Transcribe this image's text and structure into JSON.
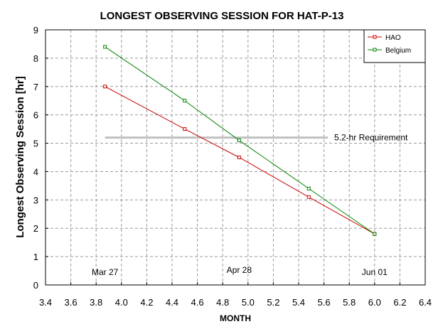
{
  "chart_data": {
    "type": "line",
    "title": "LONGEST OBSERVING SESSION FOR HAT-P-13",
    "xlabel": "MONTH",
    "ylabel": "Longest Observing Session [hr]",
    "xlim": [
      3.4,
      6.4
    ],
    "ylim": [
      0,
      9
    ],
    "xticks": [
      3.4,
      3.6,
      3.8,
      4.0,
      4.2,
      4.4,
      4.6,
      4.8,
      5.0,
      5.2,
      5.4,
      5.6,
      5.8,
      6.0,
      6.2,
      6.4
    ],
    "xtick_labels": [
      "3.4",
      "3.6",
      "3.8",
      "4.0",
      "4.2",
      "4.4",
      "4.6",
      "4.8",
      "5.0",
      "5.2",
      "5.4",
      "5.6",
      "5.8",
      "6.0",
      "6.2",
      "6.4"
    ],
    "yticks": [
      0,
      1,
      2,
      3,
      4,
      5,
      6,
      7,
      8,
      9
    ],
    "ytick_labels": [
      "0",
      "1",
      "2",
      "3",
      "4",
      "5",
      "6",
      "7",
      "8",
      "9"
    ],
    "grid": true,
    "legend_position": "top-right",
    "series": [
      {
        "name": "HAO",
        "color": "#cc0000",
        "x": [
          3.87,
          4.5,
          4.93,
          5.48,
          6.0
        ],
        "y": [
          7.0,
          5.5,
          4.5,
          3.1,
          1.8
        ]
      },
      {
        "name": "Belgium",
        "color": "#008000",
        "x": [
          3.87,
          4.5,
          4.93,
          5.48,
          6.0
        ],
        "y": [
          8.4,
          6.5,
          5.1,
          3.4,
          1.8
        ]
      }
    ],
    "requirement": {
      "label": "5.2-hr Requirement",
      "y": 5.2,
      "x_start": 3.87,
      "x_end": 5.63,
      "color": "#c0c0c0"
    },
    "date_annotations": [
      {
        "text": "Mar 27",
        "x": 3.87,
        "y": 0.35
      },
      {
        "text": "Apr 28",
        "x": 4.93,
        "y": 0.43
      },
      {
        "text": "Jun 01",
        "x": 6.0,
        "y": 0.35
      }
    ]
  }
}
